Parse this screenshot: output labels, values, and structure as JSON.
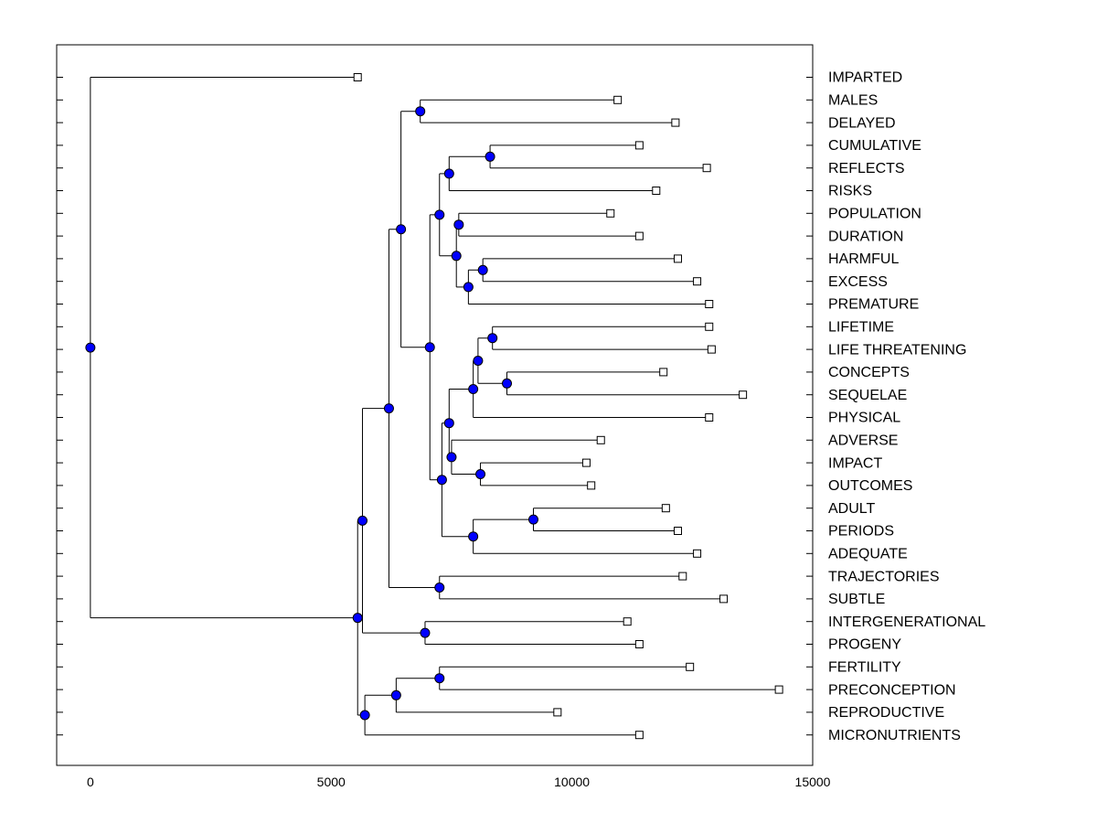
{
  "chart_data": {
    "type": "dendrogram",
    "title": "",
    "xlabel": "",
    "ylabel": "",
    "xlim": [
      -700,
      15000
    ],
    "x_ticks": [
      0,
      5000,
      10000,
      15000
    ],
    "x_tick_labels": [
      "0",
      "5000",
      "10000",
      "15000"
    ],
    "node_color": "#0000ff",
    "leaves": [
      {
        "label": "IMPARTED",
        "x": 5550
      },
      {
        "label": "MALES",
        "x": 10950
      },
      {
        "label": "DELAYED",
        "x": 12150
      },
      {
        "label": "CUMULATIVE",
        "x": 11400
      },
      {
        "label": "REFLECTS",
        "x": 12800
      },
      {
        "label": "RISKS",
        "x": 11750
      },
      {
        "label": "POPULATION",
        "x": 10800
      },
      {
        "label": "DURATION",
        "x": 11400
      },
      {
        "label": "HARMFUL",
        "x": 12200
      },
      {
        "label": "EXCESS",
        "x": 12600
      },
      {
        "label": "PREMATURE",
        "x": 12850
      },
      {
        "label": "LIFETIME",
        "x": 12850
      },
      {
        "label": "LIFE THREATENING",
        "x": 12900
      },
      {
        "label": "CONCEPTS",
        "x": 11900
      },
      {
        "label": "SEQUELAE",
        "x": 13550
      },
      {
        "label": "PHYSICAL",
        "x": 12850
      },
      {
        "label": "ADVERSE",
        "x": 10600
      },
      {
        "label": "IMPACT",
        "x": 10300
      },
      {
        "label": "OUTCOMES",
        "x": 10400
      },
      {
        "label": "ADULT",
        "x": 11950
      },
      {
        "label": "PERIODS",
        "x": 12200
      },
      {
        "label": "ADEQUATE",
        "x": 12600
      },
      {
        "label": "TRAJECTORIES",
        "x": 12300
      },
      {
        "label": "SUBTLE",
        "x": 13150
      },
      {
        "label": "INTERGENERATIONAL",
        "x": 11150
      },
      {
        "label": "PROGENY",
        "x": 11400
      },
      {
        "label": "FERTILITY",
        "x": 12450
      },
      {
        "label": "PRECONCEPTION",
        "x": 14300
      },
      {
        "label": "REPRODUCTIVE",
        "x": 9700
      },
      {
        "label": "MICRONUTRIENTS",
        "x": 11400
      }
    ],
    "merges": [
      {
        "id": "N1",
        "x": 6850,
        "children": [
          "L1",
          "L2"
        ]
      },
      {
        "id": "N2",
        "x": 8300,
        "children": [
          "L3",
          "L4"
        ]
      },
      {
        "id": "N3",
        "x": 7450,
        "children": [
          "N2",
          "L5"
        ]
      },
      {
        "id": "N4",
        "x": 7650,
        "children": [
          "L6",
          "L7"
        ]
      },
      {
        "id": "N5",
        "x": 8150,
        "children": [
          "L8",
          "L9"
        ]
      },
      {
        "id": "N6",
        "x": 7850,
        "children": [
          "N5",
          "L10"
        ]
      },
      {
        "id": "N7",
        "x": 7600,
        "children": [
          "N4",
          "N6"
        ]
      },
      {
        "id": "N8",
        "x": 7250,
        "children": [
          "N3",
          "N7"
        ]
      },
      {
        "id": "N9",
        "x": 8350,
        "children": [
          "L11",
          "L12"
        ]
      },
      {
        "id": "N10",
        "x": 8650,
        "children": [
          "L13",
          "L14"
        ]
      },
      {
        "id": "N11",
        "x": 8050,
        "children": [
          "N9",
          "N10"
        ]
      },
      {
        "id": "N12",
        "x": 7950,
        "children": [
          "N11",
          "L15"
        ]
      },
      {
        "id": "N13",
        "x": 8100,
        "children": [
          "L17",
          "L18"
        ]
      },
      {
        "id": "N14",
        "x": 7500,
        "children": [
          "L16",
          "N13"
        ]
      },
      {
        "id": "N15",
        "x": 7450,
        "children": [
          "N12",
          "N14"
        ]
      },
      {
        "id": "N16",
        "x": 9200,
        "children": [
          "L19",
          "L20"
        ]
      },
      {
        "id": "N17",
        "x": 7950,
        "children": [
          "N16",
          "L21"
        ]
      },
      {
        "id": "N18",
        "x": 7300,
        "children": [
          "N15",
          "N17"
        ]
      },
      {
        "id": "N19",
        "x": 7050,
        "children": [
          "N8",
          "N18"
        ]
      },
      {
        "id": "N20",
        "x": 6450,
        "children": [
          "N1",
          "N19"
        ]
      },
      {
        "id": "N21",
        "x": 7250,
        "children": [
          "L22",
          "L23"
        ]
      },
      {
        "id": "N22",
        "x": 6200,
        "children": [
          "N20",
          "N21"
        ]
      },
      {
        "id": "N23",
        "x": 6950,
        "children": [
          "L24",
          "L25"
        ]
      },
      {
        "id": "N24",
        "x": 5650,
        "children": [
          "N22",
          "N23"
        ]
      },
      {
        "id": "N25",
        "x": 7250,
        "children": [
          "L26",
          "L27"
        ]
      },
      {
        "id": "N26",
        "x": 6350,
        "children": [
          "N25",
          "L28"
        ]
      },
      {
        "id": "N27",
        "x": 5700,
        "children": [
          "N26",
          "L29"
        ]
      },
      {
        "id": "N28",
        "x": 5550,
        "children": [
          "N24",
          "N27"
        ]
      },
      {
        "id": "N29",
        "x": 0,
        "children": [
          "L0",
          "N28"
        ]
      }
    ]
  }
}
